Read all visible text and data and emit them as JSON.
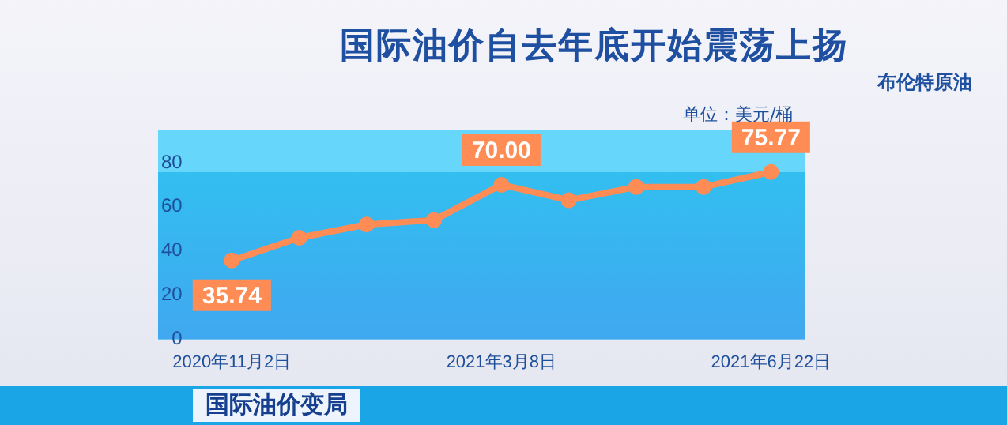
{
  "chart_data": {
    "type": "line",
    "title": "国际油价自去年底开始震荡上扬",
    "subtitle": "布伦特原油",
    "annotations": [
      "单位：美元/桶",
      "国际油价变局"
    ],
    "categories": [
      "2020年11月2日",
      null,
      null,
      null,
      "2021年3月8日",
      null,
      null,
      null,
      "2021年6月22日"
    ],
    "series": [
      {
        "color": "#ff8c55",
        "values": [
          35.74,
          46,
          52,
          54,
          70.0,
          63,
          69,
          69,
          75.77
        ],
        "value_labels": [
          "35.74",
          null,
          null,
          null,
          "70.00",
          null,
          null,
          null,
          "75.77"
        ]
      }
    ],
    "ylim": [
      0,
      95
    ],
    "yticks": [
      0,
      20,
      40,
      60,
      80
    ],
    "grid": false,
    "legend": false,
    "marker": "circle",
    "line_style": "solid"
  }
}
